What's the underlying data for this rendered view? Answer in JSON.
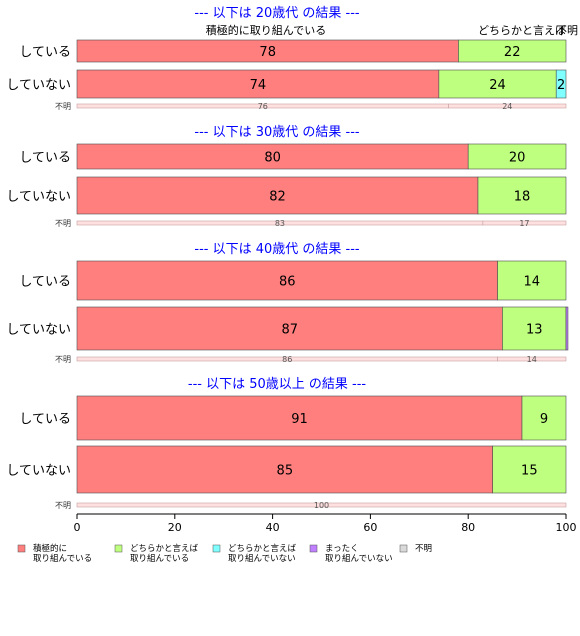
{
  "colors": {
    "cat1": "#ff7f7f",
    "cat2": "#bfff7f",
    "cat3": "#7fffff",
    "cat4": "#bf7fff",
    "cat5": "#d9d9d9",
    "title": "#0000ff",
    "unknown_fill": "#ffe0e0"
  },
  "chart_data": {
    "type": "bar",
    "orientation": "horizontal",
    "stacked": true,
    "xlim": [
      0,
      100
    ],
    "x_ticks": [
      "0",
      "20",
      "40",
      "60",
      "80",
      "100"
    ],
    "top_labels": {
      "cat1": "積極的に取り組んでいる",
      "cat2": "どちらかと言えば",
      "cat3": "不明"
    },
    "legend": [
      {
        "line1": "積極的に",
        "line2": "取り組んでいる",
        "color": "#ff7f7f"
      },
      {
        "line1": "どちらかと言えば",
        "line2": "取り組んでいる",
        "color": "#bfff7f"
      },
      {
        "line1": "どちらかと言えば",
        "line2": "取り組んでいない",
        "color": "#7fffff"
      },
      {
        "line1": "まったく",
        "line2": "取り組んでいない",
        "color": "#bf7fff"
      },
      {
        "line1": "不明",
        "line2": "",
        "color": "#d9d9d9"
      }
    ],
    "groups": [
      {
        "title": "--- 以下は 20歳代 の結果 ---",
        "rows": [
          {
            "label": "している",
            "values": [
              78,
              22,
              0,
              0,
              0
            ],
            "value_labels": [
              "78",
              "22",
              "",
              "",
              ""
            ]
          },
          {
            "label": "していない",
            "values": [
              74,
              24,
              2,
              0,
              0
            ],
            "value_labels": [
              "74",
              "24",
              "2",
              "",
              ""
            ]
          }
        ],
        "unknown": {
          "label": "不明",
          "values": [
            76,
            24
          ],
          "value_labels": [
            "76",
            "24"
          ]
        }
      },
      {
        "title": "--- 以下は 30歳代 の結果 ---",
        "rows": [
          {
            "label": "している",
            "values": [
              80,
              20,
              0,
              0,
              0
            ],
            "value_labels": [
              "80",
              "20",
              "",
              "",
              ""
            ]
          },
          {
            "label": "していない",
            "values": [
              82,
              18,
              0,
              0,
              0
            ],
            "value_labels": [
              "82",
              "18",
              "",
              "",
              ""
            ]
          }
        ],
        "unknown": {
          "label": "不明",
          "values": [
            83,
            17
          ],
          "value_labels": [
            "83",
            "17"
          ]
        }
      },
      {
        "title": "--- 以下は 40歳代 の結果 ---",
        "rows": [
          {
            "label": "している",
            "values": [
              86,
              14,
              0,
              0,
              0
            ],
            "value_labels": [
              "86",
              "14",
              "",
              "",
              ""
            ]
          },
          {
            "label": "していない",
            "values": [
              87,
              13,
              0,
              0.4,
              0
            ],
            "value_labels": [
              "87",
              "13",
              "",
              "",
              ""
            ]
          }
        ],
        "unknown": {
          "label": "不明",
          "values": [
            86,
            14
          ],
          "value_labels": [
            "86",
            "14"
          ]
        }
      },
      {
        "title": "--- 以下は 50歳以上 の結果 ---",
        "rows": [
          {
            "label": "している",
            "values": [
              91,
              9,
              0,
              0,
              0
            ],
            "value_labels": [
              "91",
              "9",
              "",
              "",
              ""
            ]
          },
          {
            "label": "していない",
            "values": [
              85,
              15,
              0,
              0,
              0
            ],
            "value_labels": [
              "85",
              "15",
              "",
              "",
              ""
            ]
          }
        ],
        "unknown": {
          "label": "不明",
          "values": [
            100
          ],
          "value_labels": [
            "100"
          ]
        }
      }
    ]
  }
}
